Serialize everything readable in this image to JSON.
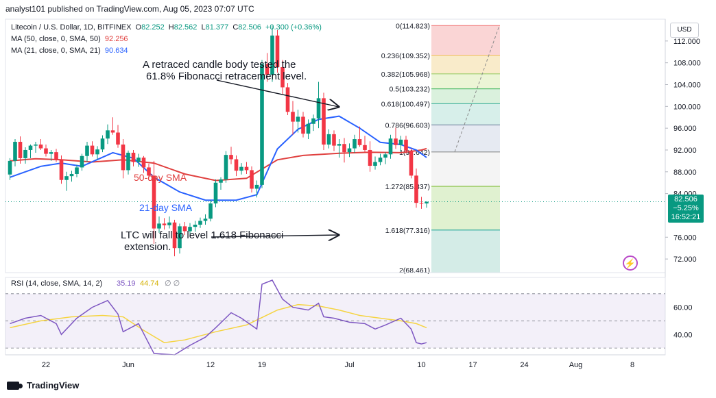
{
  "header": "analyst101 published on TradingView.com, Aug 05, 2023 07:07 UTC",
  "legend": {
    "symbol": "Litecoin / U.S. Dollar, 1D, BITFINEX",
    "o_label": "O",
    "o": "82.252",
    "h_label": "H",
    "h": "82.562",
    "l_label": "L",
    "l": "81.377",
    "c_label": "C",
    "c": "82.506",
    "change": "+0.300 (+0.36%)",
    "ma50": "MA (50, close, 0, SMA, 50)",
    "ma50_value": "92.256",
    "ma21": "MA (21, close, 0, SMA, 21)",
    "ma21_value": "90.634"
  },
  "currency_button": "USD",
  "price_tag": {
    "price": "82.506",
    "change": "−5.25%",
    "countdown": "16:52:21"
  },
  "rsi_legend": {
    "label": "RSI (14, close, SMA, 14, 2)",
    "rsi": "35.19",
    "sma": "44.74",
    "bands": "∅ ∅"
  },
  "annotations": {
    "retrace_line1": "A retraced candle body tested the",
    "retrace_line2": "61.8% Fibonacci retracement level.",
    "sma50": "50-day SMA",
    "sma21": "21-day SMA",
    "fall_line1": "LTC will fall to level 1.618 Fibonacci",
    "fall_line2": "extension."
  },
  "branding": "TradingView",
  "chart_data": {
    "type": "candlestick",
    "price_axis": {
      "ticks": [
        "112.000",
        "108.000",
        "104.000",
        "100.000",
        "96.000",
        "92.000",
        "88.000",
        "84.000",
        "76.000",
        "72.000"
      ],
      "values": [
        112,
        108,
        104,
        100,
        96,
        92,
        88,
        84,
        76,
        72
      ],
      "range": [
        69.5,
        116
      ]
    },
    "rsi_axis": {
      "ticks": [
        "60.00",
        "40.00"
      ],
      "values": [
        60,
        40
      ],
      "range": [
        25,
        82
      ],
      "band": [
        30,
        70
      ],
      "mid": 50
    },
    "time_axis": {
      "labels": [
        "22",
        "Jun",
        "12",
        "19",
        "Jul",
        "10",
        "17",
        "24",
        "Aug",
        "8"
      ],
      "index": [
        7,
        23,
        39,
        49,
        66,
        80,
        90,
        100,
        110,
        121
      ]
    },
    "fibonacci": [
      {
        "label": "0(114.823)",
        "value": 114.823,
        "color": "#f28b8b"
      },
      {
        "label": "0.236(109.352)",
        "value": 109.352,
        "color": "#f0c36b"
      },
      {
        "label": "0.382(105.968)",
        "value": 105.968,
        "color": "#9acd6a"
      },
      {
        "label": "0.5(103.232)",
        "value": 103.232,
        "color": "#5cbf73"
      },
      {
        "label": "0.618(100.497)",
        "value": 100.497,
        "color": "#4fb8a3"
      },
      {
        "label": "0.786(96.603)",
        "value": 96.603,
        "color": "#7f8fa6"
      },
      {
        "label": "1(91.642)",
        "value": 91.642,
        "color": "#8a8a8a"
      },
      {
        "label": "1.272(85.337)",
        "value": 85.337,
        "color": "#8bc34a"
      },
      {
        "label": "1.618(77.316)",
        "value": 77.316,
        "color": "#26a69a"
      },
      {
        "label": "2(68.461)",
        "value": 68.461,
        "color": "#9e9e9e"
      }
    ],
    "candles": [
      [
        87.5,
        90.5,
        86.5,
        90.0
      ],
      [
        90.0,
        94.0,
        89.0,
        93.5
      ],
      [
        93.5,
        94.5,
        89.5,
        90.5
      ],
      [
        90.5,
        92.5,
        89.5,
        92.0
      ],
      [
        92.0,
        93.0,
        90.5,
        92.8
      ],
      [
        92.8,
        93.5,
        91.5,
        93.0
      ],
      [
        93.0,
        94.0,
        92.0,
        92.3
      ],
      [
        92.3,
        93.0,
        90.8,
        91.3
      ],
      [
        91.3,
        92.0,
        90.0,
        91.6
      ],
      [
        91.6,
        92.2,
        89.8,
        90.2
      ],
      [
        90.2,
        91.0,
        85.8,
        86.5
      ],
      [
        86.5,
        88.0,
        84.5,
        87.2
      ],
      [
        87.2,
        88.2,
        86.2,
        87.6
      ],
      [
        87.6,
        89.3,
        87.0,
        88.8
      ],
      [
        88.8,
        91.3,
        88.2,
        90.9
      ],
      [
        90.9,
        93.5,
        89.8,
        92.8
      ],
      [
        92.8,
        93.6,
        90.8,
        91.2
      ],
      [
        91.2,
        92.7,
        90.2,
        92.1
      ],
      [
        92.1,
        94.7,
        91.6,
        94.1
      ],
      [
        94.1,
        96.7,
        93.1,
        95.6
      ],
      [
        95.6,
        98.0,
        94.8,
        95.2
      ],
      [
        95.2,
        96.6,
        92.4,
        93.0
      ],
      [
        93.0,
        94.0,
        86.8,
        88.3
      ],
      [
        88.3,
        91.9,
        87.5,
        91.5
      ],
      [
        91.5,
        92.0,
        89.0,
        89.8
      ],
      [
        89.8,
        91.3,
        88.9,
        90.6
      ],
      [
        90.6,
        90.9,
        87.8,
        88.8
      ],
      [
        88.8,
        89.5,
        86.8,
        87.3
      ],
      [
        87.3,
        90.0,
        74.8,
        77.6
      ],
      [
        77.6,
        79.8,
        76.8,
        78.5
      ],
      [
        78.5,
        79.5,
        77.4,
        78.2
      ],
      [
        78.2,
        79.8,
        77.6,
        78.7
      ],
      [
        78.7,
        79.2,
        72.5,
        74.0
      ],
      [
        74.0,
        78.5,
        73.0,
        78.0
      ],
      [
        78.0,
        78.8,
        76.4,
        77.1
      ],
      [
        77.1,
        78.6,
        76.2,
        77.9
      ],
      [
        77.9,
        79.0,
        77.0,
        78.3
      ],
      [
        78.3,
        79.6,
        77.7,
        79.0
      ],
      [
        79.0,
        80.2,
        78.3,
        79.4
      ],
      [
        79.4,
        82.8,
        78.9,
        82.2
      ],
      [
        82.2,
        86.6,
        81.5,
        86.0
      ],
      [
        86.0,
        87.0,
        84.7,
        86.6
      ],
      [
        86.6,
        91.8,
        86.0,
        91.1
      ],
      [
        91.1,
        92.6,
        89.4,
        90.3
      ],
      [
        90.3,
        91.0,
        87.2,
        88.2
      ],
      [
        88.2,
        89.6,
        87.5,
        88.9
      ],
      [
        88.9,
        89.8,
        87.6,
        88.3
      ],
      [
        88.3,
        89.0,
        84.2,
        84.9
      ],
      [
        84.9,
        86.4,
        83.3,
        85.6
      ],
      [
        85.6,
        108.5,
        85.0,
        107.8
      ],
      [
        107.8,
        109.8,
        104.5,
        105.8
      ],
      [
        105.8,
        114.8,
        104.5,
        113.0
      ],
      [
        113.0,
        114.0,
        106.2,
        107.2
      ],
      [
        107.2,
        108.5,
        102.3,
        103.5
      ],
      [
        103.5,
        104.3,
        98.4,
        99.0
      ],
      [
        99.0,
        101.0,
        94.8,
        97.2
      ],
      [
        97.2,
        99.4,
        95.2,
        98.1
      ],
      [
        98.1,
        99.0,
        94.3,
        95.0
      ],
      [
        95.0,
        97.6,
        94.0,
        96.8
      ],
      [
        96.8,
        98.5,
        95.5,
        97.8
      ],
      [
        97.8,
        104.5,
        96.0,
        101.5
      ],
      [
        101.5,
        102.5,
        92.0,
        93.0
      ],
      [
        93.0,
        95.8,
        92.3,
        94.9
      ],
      [
        94.9,
        95.6,
        91.8,
        92.8
      ],
      [
        92.8,
        94.0,
        90.6,
        93.1
      ],
      [
        93.1,
        94.2,
        89.7,
        91.6
      ],
      [
        91.6,
        93.2,
        90.7,
        92.3
      ],
      [
        92.3,
        94.8,
        91.5,
        94.0
      ],
      [
        94.0,
        96.3,
        92.6,
        92.9
      ],
      [
        92.9,
        94.6,
        91.6,
        92.0
      ],
      [
        92.0,
        93.6,
        88.0,
        89.1
      ],
      [
        89.1,
        90.8,
        88.4,
        89.8
      ],
      [
        89.8,
        91.3,
        89.2,
        90.6
      ],
      [
        90.6,
        91.6,
        89.4,
        91.2
      ],
      [
        91.2,
        94.8,
        90.4,
        94.1
      ],
      [
        94.1,
        96.1,
        92.2,
        92.9
      ],
      [
        92.9,
        94.6,
        91.7,
        93.9
      ],
      [
        93.9,
        94.6,
        91.4,
        91.9
      ],
      [
        91.9,
        92.3,
        86.8,
        87.3
      ],
      [
        87.3,
        88.6,
        81.4,
        82.3
      ],
      [
        82.3,
        83.4,
        81.2,
        82.2
      ],
      [
        82.2,
        82.6,
        81.4,
        82.5
      ]
    ],
    "candle_x_index": [
      0,
      1,
      2,
      3,
      4,
      5,
      6,
      7,
      8,
      9,
      10,
      11,
      12,
      13,
      14,
      15,
      16,
      17,
      18,
      19,
      20,
      21,
      22,
      23,
      24,
      25,
      26,
      27,
      28,
      29,
      30,
      31,
      32,
      33,
      34,
      35,
      36,
      37,
      38,
      39,
      40,
      41,
      42,
      43,
      44,
      45,
      46,
      47,
      48,
      49,
      50,
      51,
      52,
      53,
      54,
      55,
      56,
      57,
      58,
      59,
      60,
      61,
      62,
      63,
      64,
      65,
      66,
      67,
      68,
      69,
      70,
      71,
      72,
      73,
      74,
      75,
      76,
      77,
      78,
      79,
      80,
      81
    ],
    "ma50": [
      [
        0,
        90.0
      ],
      [
        5,
        90.4
      ],
      [
        10,
        90.2
      ],
      [
        16,
        89.8
      ],
      [
        22,
        90.2
      ],
      [
        28,
        89.6
      ],
      [
        34,
        87.6
      ],
      [
        40,
        86.4
      ],
      [
        46,
        86.8
      ],
      [
        52,
        90.2
      ],
      [
        57,
        91.0
      ],
      [
        64,
        91.4
      ],
      [
        70,
        91.6
      ],
      [
        76,
        91.5
      ],
      [
        80,
        92.0
      ],
      [
        81,
        92.26
      ]
    ],
    "ma21": [
      [
        0,
        87.0
      ],
      [
        6,
        89.0
      ],
      [
        10,
        89.6
      ],
      [
        14,
        89.0
      ],
      [
        20,
        91.5
      ],
      [
        24,
        90.5
      ],
      [
        28,
        87.0
      ],
      [
        33,
        84.3
      ],
      [
        38,
        82.8
      ],
      [
        44,
        82.8
      ],
      [
        48,
        83.8
      ],
      [
        52,
        92.2
      ],
      [
        56,
        95.8
      ],
      [
        60,
        97.6
      ],
      [
        64,
        98.2
      ],
      [
        68,
        96.0
      ],
      [
        72,
        93.4
      ],
      [
        76,
        93.0
      ],
      [
        79,
        92.0
      ],
      [
        81,
        90.63
      ]
    ],
    "rsi": [
      [
        0,
        48
      ],
      [
        3,
        52
      ],
      [
        6,
        54
      ],
      [
        9,
        48
      ],
      [
        10,
        40
      ],
      [
        13,
        52
      ],
      [
        16,
        60
      ],
      [
        19,
        65
      ],
      [
        21,
        55
      ],
      [
        22,
        42
      ],
      [
        25,
        48
      ],
      [
        28,
        26
      ],
      [
        32,
        25
      ],
      [
        35,
        32
      ],
      [
        38,
        38
      ],
      [
        40,
        45
      ],
      [
        43,
        56
      ],
      [
        45,
        52
      ],
      [
        48,
        44
      ],
      [
        49,
        77
      ],
      [
        51,
        80
      ],
      [
        53,
        66
      ],
      [
        55,
        60
      ],
      [
        58,
        58
      ],
      [
        60,
        63
      ],
      [
        61,
        53
      ],
      [
        63,
        52
      ],
      [
        66,
        49
      ],
      [
        69,
        48
      ],
      [
        71,
        44
      ],
      [
        73,
        47
      ],
      [
        76,
        52
      ],
      [
        78,
        44
      ],
      [
        79,
        34
      ],
      [
        80,
        33
      ],
      [
        81,
        34
      ]
    ],
    "rsi_sma": [
      [
        0,
        45
      ],
      [
        6,
        50
      ],
      [
        12,
        53
      ],
      [
        18,
        54
      ],
      [
        22,
        53
      ],
      [
        26,
        43
      ],
      [
        30,
        34
      ],
      [
        34,
        36
      ],
      [
        40,
        42
      ],
      [
        46,
        47
      ],
      [
        52,
        58
      ],
      [
        56,
        62
      ],
      [
        60,
        61
      ],
      [
        64,
        58
      ],
      [
        68,
        54
      ],
      [
        72,
        52
      ],
      [
        76,
        50
      ],
      [
        79,
        48
      ],
      [
        81,
        45
      ]
    ]
  }
}
